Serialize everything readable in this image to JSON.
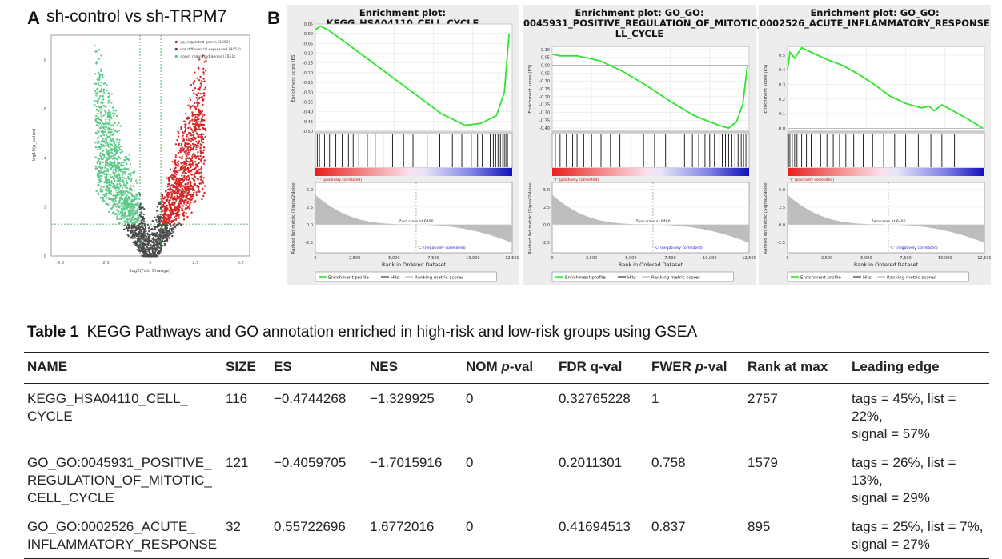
{
  "panel_a": {
    "letter": "A",
    "title": "sh-control vs sh-TRPM7",
    "legend": [
      {
        "label": "up_regulated genes (1202)",
        "color": "#d62728"
      },
      {
        "label": "not differential expressed (9452)",
        "color": "#444444"
      },
      {
        "label": "down_regulated genes (1651)",
        "color": "#5fc98a"
      }
    ],
    "xlabel": "log2(Fold Change)",
    "ylabel": "-log10(p_value)",
    "xticks": [
      "-5.0",
      "-2.5",
      "0",
      "2.5",
      "5.0"
    ],
    "yticks": [
      "0",
      "2",
      "4",
      "6",
      "8"
    ]
  },
  "panel_b": {
    "letter": "B",
    "plots": [
      {
        "title": "Enrichment plot: KEGG_HSA04110_CELL_CYCLE",
        "es_ticks": [
          "0.05",
          "0.00",
          "-0.05",
          "-0.10",
          "-0.15",
          "-0.20",
          "-0.25",
          "-0.30",
          "-0.35",
          "-0.40",
          "-0.45",
          "-0.50"
        ],
        "es_min": -0.5,
        "es_max": 0.05,
        "es_curve": [
          [
            0,
            0.02
          ],
          [
            300,
            0.04
          ],
          [
            800,
            0.02
          ],
          [
            2000,
            -0.05
          ],
          [
            4000,
            -0.17
          ],
          [
            6000,
            -0.29
          ],
          [
            8000,
            -0.41
          ],
          [
            9500,
            -0.47
          ],
          [
            10500,
            -0.46
          ],
          [
            11500,
            -0.42
          ],
          [
            12000,
            -0.3
          ],
          [
            12300,
            0.0
          ]
        ],
        "hits": [
          120,
          260,
          580,
          900,
          1300,
          1700,
          2100,
          2400,
          2757,
          3300,
          3800,
          4300,
          4900,
          5600,
          6200,
          7100,
          7900,
          8700,
          9300,
          9900,
          10300,
          10600,
          10900,
          11100,
          11300,
          11450,
          11600,
          11750,
          11900,
          12000,
          12100,
          12200
        ],
        "pos_label": "'T' (positively correlated)",
        "neg_label": "'C' (negatively correlated)",
        "zero_cross": "Zero cross at 6400",
        "rank_ticks": [
          "0",
          "2,500",
          "5,000",
          "7,500",
          "10,000",
          "12,500"
        ],
        "metric_ticks": [
          "5.0",
          "2.5",
          "0.0",
          "-2.5"
        ],
        "es_ylabel": "Enrichment score (ES)",
        "metric_ylabel": "Ranked list metric (Signal2Noise)",
        "xlabel": "Rank in Ordered Dataset",
        "legend": [
          "Enrichment profile",
          "Hits",
          "Ranking metric scores"
        ]
      },
      {
        "title": "Enrichment plot: GO_GO:\n0045931_POSITIVE_REGULATION_OF_MITOTIC_CE\nLL_CYCLE",
        "es_ticks": [
          "0.10",
          "0.05",
          "0.00",
          "-0.05",
          "-0.10",
          "-0.15",
          "-0.20",
          "-0.25",
          "-0.30",
          "-0.35",
          "-0.40"
        ],
        "es_min": -0.42,
        "es_max": 0.12,
        "es_curve": [
          [
            0,
            0.07
          ],
          [
            500,
            0.06
          ],
          [
            1579,
            0.06
          ],
          [
            3000,
            0.03
          ],
          [
            4500,
            -0.04
          ],
          [
            6000,
            -0.13
          ],
          [
            7500,
            -0.23
          ],
          [
            9000,
            -0.32
          ],
          [
            10500,
            -0.38
          ],
          [
            11200,
            -0.4
          ],
          [
            11700,
            -0.36
          ],
          [
            12100,
            -0.25
          ],
          [
            12400,
            0.0
          ]
        ],
        "hits": [
          200,
          500,
          900,
          1300,
          1579,
          2000,
          2500,
          3100,
          3700,
          4300,
          5000,
          5800,
          6500,
          7200,
          7800,
          8400,
          8900,
          9300,
          9700,
          10000,
          10300,
          10600,
          10800,
          11000,
          11200,
          11400,
          11600,
          11800,
          12000,
          12150,
          12300
        ],
        "pos_label": "'T' (positively correlated)",
        "neg_label": "'C' (negatively correlated)",
        "zero_cross": "Zero cross at 6400",
        "rank_ticks": [
          "0",
          "2,500",
          "5,000",
          "7,500",
          "10,000",
          "12,500"
        ],
        "metric_ticks": [
          "5.0",
          "2.5",
          "0.0",
          "-2.5"
        ],
        "es_ylabel": "Enrichment score (ES)",
        "metric_ylabel": "Ranked list metric (Signal2Noise)",
        "xlabel": "Rank in Ordered Dataset",
        "legend": [
          "Enrichment profile",
          "Hits",
          "Ranking metric scores"
        ]
      },
      {
        "title": "Enrichment plot: GO_GO:\n0002526_ACUTE_INFLAMMATORY_RESPONSE",
        "es_ticks": [
          "0.5",
          "0.4",
          "0.3",
          "0.2",
          "0.1",
          "0.0"
        ],
        "es_min": -0.02,
        "es_max": 0.56,
        "es_curve": [
          [
            0,
            0.4
          ],
          [
            150,
            0.52
          ],
          [
            450,
            0.48
          ],
          [
            895,
            0.55
          ],
          [
            1500,
            0.52
          ],
          [
            2500,
            0.47
          ],
          [
            3500,
            0.43
          ],
          [
            4500,
            0.37
          ],
          [
            5500,
            0.3
          ],
          [
            6500,
            0.22
          ],
          [
            7500,
            0.17
          ],
          [
            8500,
            0.14
          ],
          [
            9000,
            0.15
          ],
          [
            9300,
            0.12
          ],
          [
            9800,
            0.16
          ],
          [
            10500,
            0.12
          ],
          [
            11500,
            0.06
          ],
          [
            12400,
            0.0
          ]
        ],
        "hits": [
          60,
          150,
          300,
          450,
          600,
          895,
          1200,
          1500,
          1800,
          2100,
          2500,
          2900,
          3300,
          3700,
          4200,
          4800,
          5400,
          6100,
          6800,
          7500,
          8300,
          9100,
          9800,
          10600
        ],
        "pos_label": "'T' (positively correlated)",
        "neg_label": "'C' (negatively correlated)",
        "zero_cross": "Zero cross at 6400",
        "rank_ticks": [
          "0",
          "2,500",
          "5,000",
          "7,500",
          "10,000",
          "12,500"
        ],
        "metric_ticks": [
          "5.0",
          "2.5",
          "0.0",
          "-2.5"
        ],
        "es_ylabel": "Enrichment score (ES)",
        "metric_ylabel": "Ranked list metric (Signal2Noise)",
        "xlabel": "Rank in Ordered Dataset",
        "legend": [
          "Enrichment profile",
          "Hits",
          "Ranking metric scores"
        ]
      }
    ]
  },
  "table": {
    "caption_bold": "Table 1",
    "caption_text": "KEGG Pathways and GO annotation enriched in high-risk and low-risk groups using GSEA",
    "headers": {
      "name": "NAME",
      "size": "SIZE",
      "es": "ES",
      "nes": "NES",
      "nom_prefix": "NOM ",
      "nom_italic": "p",
      "nom_suffix": "-val",
      "fdr": "FDR q-val",
      "fwer_prefix": "FWER ",
      "fwer_italic": "p",
      "fwer_suffix": "-val",
      "rank": "Rank at max",
      "edge": "Leading edge"
    },
    "rows": [
      {
        "name": "KEGG_HSA04110_CELL_\nCYCLE",
        "size": "116",
        "es": "−0.4744268",
        "nes": "−1.329925",
        "nom": "0",
        "fdr": "0.32765228",
        "fwer": "1",
        "rank": "2757",
        "edge": "tags = 45%, list = 22%,\nsignal = 57%"
      },
      {
        "name": "GO_GO:0045931_POSITIVE_\nREGULATION_OF_MITOTIC_\nCELL_CYCLE",
        "size": "121",
        "es": "−0.4059705",
        "nes": "−1.7015916",
        "nom": "0",
        "fdr": "0.2011301",
        "fwer": "0.758",
        "rank": "1579",
        "edge": "tags = 26%, list = 13%,\nsignal = 29%"
      },
      {
        "name": "GO_GO:0002526_ACUTE_\nINFLAMMATORY_RESPONSE",
        "size": "32",
        "es": "0.55722696",
        "nes": "1.6772016",
        "nom": "0",
        "fdr": "0.41694513",
        "fwer": "0.837",
        "rank": "895",
        "edge": "tags = 25%, list = 7%,\nsignal = 27%"
      }
    ]
  }
}
